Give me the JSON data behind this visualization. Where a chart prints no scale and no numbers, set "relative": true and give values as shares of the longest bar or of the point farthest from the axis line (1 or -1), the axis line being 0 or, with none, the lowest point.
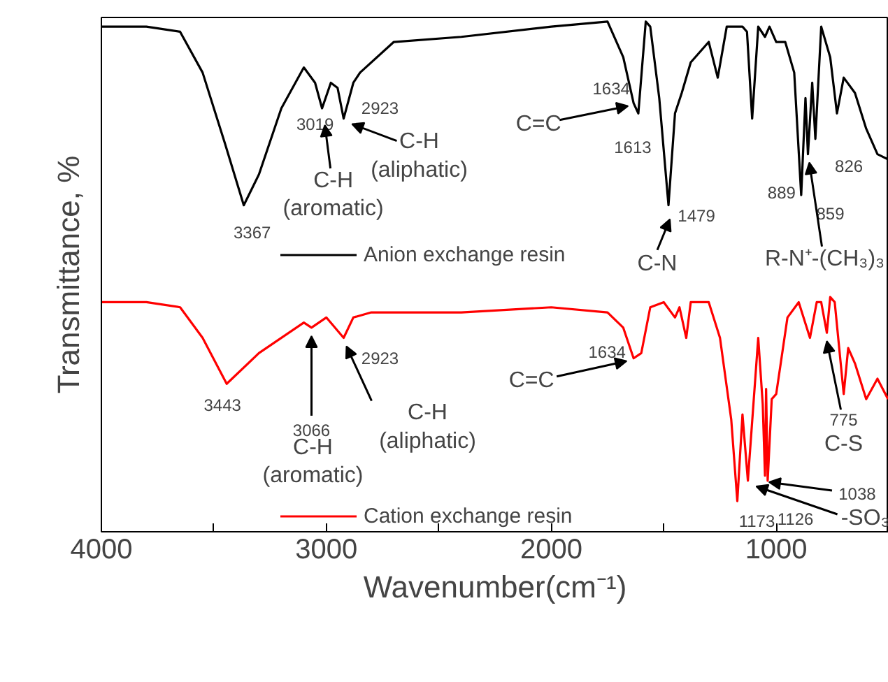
{
  "chart_data": {
    "type": "line",
    "relative": true,
    "xlabel": "Wavenumber(cm⁻¹)",
    "ylabel": "Transmittance, %",
    "xlim": [
      4000,
      500
    ],
    "xticks": [
      4000,
      {
        "value": 3500,
        "label": null
      },
      3000,
      {
        "value": 2500,
        "label": null
      },
      2000,
      {
        "value": 1500,
        "label": null
      },
      1000
    ],
    "grid": false,
    "legend": "left",
    "marker": "none",
    "line_style": "solid",
    "series": [
      {
        "name": "Anion exchange resin",
        "color": "#000000",
        "x": [
          4000,
          3800,
          3650,
          3550,
          3450,
          3367,
          3300,
          3200,
          3100,
          3050,
          3019,
          2980,
          2950,
          2923,
          2880,
          2850,
          2700,
          2400,
          2000,
          1750,
          1680,
          1634,
          1613,
          1580,
          1560,
          1520,
          1479,
          1450,
          1420,
          1380,
          1300,
          1260,
          1220,
          1150,
          1130,
          1107,
          1080,
          1050,
          1030,
          1000,
          960,
          920,
          889,
          870,
          859,
          840,
          826,
          800,
          760,
          730,
          700,
          650,
          600,
          550,
          503
        ],
        "values": [
          0.99,
          0.99,
          0.98,
          0.9,
          0.76,
          0.64,
          0.7,
          0.83,
          0.91,
          0.88,
          0.83,
          0.88,
          0.87,
          0.81,
          0.88,
          0.9,
          0.96,
          0.97,
          0.99,
          1.0,
          0.93,
          0.84,
          0.82,
          1.0,
          0.99,
          0.85,
          0.64,
          0.82,
          0.86,
          0.92,
          0.96,
          0.89,
          0.99,
          0.99,
          0.98,
          0.81,
          0.99,
          0.97,
          0.99,
          0.96,
          0.96,
          0.9,
          0.66,
          0.85,
          0.74,
          0.88,
          0.77,
          0.99,
          0.93,
          0.82,
          0.89,
          0.86,
          0.79,
          0.74,
          0.73
        ]
      },
      {
        "name": "Cation exchange resin",
        "color": "#ff0000",
        "x": [
          4000,
          3800,
          3650,
          3550,
          3443,
          3300,
          3100,
          3066,
          3000,
          2923,
          2880,
          2800,
          2400,
          2000,
          1750,
          1680,
          1634,
          1600,
          1560,
          1500,
          1450,
          1430,
          1400,
          1380,
          1300,
          1250,
          1200,
          1173,
          1150,
          1126,
          1080,
          1060,
          1050,
          1045,
          1038,
          1020,
          1000,
          950,
          900,
          850,
          820,
          800,
          775,
          760,
          740,
          700,
          680,
          650,
          600,
          550,
          503
        ],
        "values": [
          0.45,
          0.45,
          0.44,
          0.38,
          0.29,
          0.35,
          0.41,
          0.4,
          0.42,
          0.38,
          0.42,
          0.43,
          0.43,
          0.44,
          0.43,
          0.4,
          0.34,
          0.35,
          0.44,
          0.45,
          0.42,
          0.44,
          0.38,
          0.45,
          0.45,
          0.38,
          0.22,
          0.06,
          0.23,
          0.1,
          0.38,
          0.25,
          0.11,
          0.28,
          0.1,
          0.26,
          0.27,
          0.42,
          0.45,
          0.38,
          0.45,
          0.45,
          0.39,
          0.46,
          0.45,
          0.27,
          0.36,
          0.33,
          0.26,
          0.3,
          0.26
        ]
      }
    ],
    "annotations": [
      {
        "text": "3367",
        "x": 3367,
        "y": 0.64
      },
      {
        "text": "3019",
        "x": 3019,
        "y": 0.83
      },
      {
        "text": "2923",
        "x": 2923,
        "y": 0.81
      },
      {
        "text": "C-H\n(aromatic)",
        "x": 3019,
        "y": 0.83
      },
      {
        "text": "C-H\n(aliphatic)",
        "x": 2923,
        "y": 0.81
      },
      {
        "text": "1634",
        "x": 1634,
        "y": 0.84
      },
      {
        "text": "C=C",
        "x": 1634,
        "y": 0.84
      },
      {
        "text": "1613",
        "x": 1613,
        "y": 0.82
      },
      {
        "text": "1479",
        "x": 1479,
        "y": 0.64
      },
      {
        "text": "C-N",
        "x": 1479,
        "y": 0.64
      },
      {
        "text": "889",
        "x": 889,
        "y": 0.66
      },
      {
        "text": "859",
        "x": 859,
        "y": 0.74
      },
      {
        "text": "826",
        "x": 826,
        "y": 0.77
      },
      {
        "text": "R-N⁺-(CH₃)₃",
        "x": 859,
        "y": 0.74
      },
      {
        "text": "3443",
        "x": 3443,
        "y": 0.29
      },
      {
        "text": "3066",
        "x": 3066,
        "y": 0.4
      },
      {
        "text": "C-H\n(aromatic)",
        "x": 3066,
        "y": 0.4
      },
      {
        "text": "2923",
        "x": 2923,
        "y": 0.38
      },
      {
        "text": "C-H\n(aliphatic)",
        "x": 2923,
        "y": 0.38
      },
      {
        "text": "1634",
        "x": 1634,
        "y": 0.34
      },
      {
        "text": "C=C",
        "x": 1634,
        "y": 0.34
      },
      {
        "text": "1173",
        "x": 1173,
        "y": 0.06
      },
      {
        "text": "1126",
        "x": 1126,
        "y": 0.1
      },
      {
        "text": "1038",
        "x": 1038,
        "y": 0.1
      },
      {
        "text": "-SO₃",
        "x": 1126,
        "y": 0.1
      },
      {
        "text": "775",
        "x": 775,
        "y": 0.39
      },
      {
        "text": "C-S",
        "x": 775,
        "y": 0.39
      }
    ]
  }
}
